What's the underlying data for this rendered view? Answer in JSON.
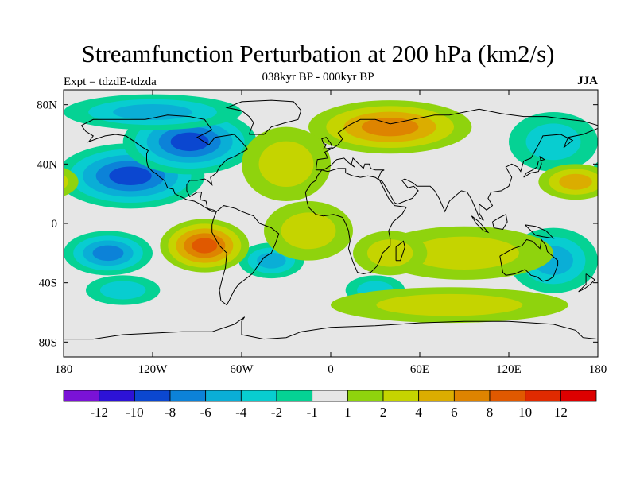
{
  "title": "Streamfunction Perturbation at 200 hPa (km2/s)",
  "subtitle": "038kyr BP - 000kyr BP",
  "experiment": "Expt = tdzdE-tdzda",
  "season": "JJA",
  "map": {
    "projection": "cylindrical-equidistant",
    "lon_range": [
      -180,
      180
    ],
    "lat_range": [
      -90,
      90
    ],
    "lat_ticks": [
      {
        "value": 80,
        "label": "80N"
      },
      {
        "value": 40,
        "label": "40N"
      },
      {
        "value": 0,
        "label": "0"
      },
      {
        "value": -40,
        "label": "40S"
      },
      {
        "value": -80,
        "label": "80S"
      }
    ],
    "lon_ticks": [
      {
        "value": -180,
        "label": "180"
      },
      {
        "value": -120,
        "label": "120W"
      },
      {
        "value": -60,
        "label": "60W"
      },
      {
        "value": 0,
        "label": "0"
      },
      {
        "value": 60,
        "label": "60E"
      },
      {
        "value": 120,
        "label": "120E"
      },
      {
        "value": 180,
        "label": "180"
      }
    ],
    "background_color": "#e6e6e6",
    "anomaly_regions": [
      {
        "name": "n-pacific-low",
        "lon": -135,
        "lat": 32,
        "rlon": 50,
        "rlat": 22,
        "value": -9
      },
      {
        "name": "n-america-low",
        "lon": -95,
        "lat": 55,
        "rlon": 45,
        "rlat": 22,
        "value": -8
      },
      {
        "name": "arctic-canada-low",
        "lon": -120,
        "lat": 75,
        "rlon": 60,
        "rlat": 12,
        "value": -5
      },
      {
        "name": "sw-pacific-low",
        "lon": -150,
        "lat": -20,
        "rlon": 30,
        "rlat": 15,
        "value": -6
      },
      {
        "name": "s-pacific-low",
        "lon": -140,
        "lat": -45,
        "rlon": 25,
        "rlat": 10,
        "value": -3
      },
      {
        "name": "s-atlantic-low",
        "lon": -40,
        "lat": -25,
        "rlon": 22,
        "rlat": 12,
        "value": -4
      },
      {
        "name": "s-indian-low",
        "lon": 30,
        "lat": -45,
        "rlon": 20,
        "rlat": 10,
        "value": -3
      },
      {
        "name": "w-pacific-low",
        "lon": 150,
        "lat": -25,
        "rlon": 30,
        "rlat": 22,
        "value": -5
      },
      {
        "name": "nw-pacific-low",
        "lon": 150,
        "lat": 55,
        "rlon": 30,
        "rlat": 20,
        "value": -3
      },
      {
        "name": "eurasia-high",
        "lon": 40,
        "lat": 65,
        "rlon": 55,
        "rlat": 18,
        "value": 7
      },
      {
        "name": "atlantic-high",
        "lon": -30,
        "lat": 40,
        "rlon": 30,
        "rlat": 25,
        "value": 2
      },
      {
        "name": "n-pacific-high",
        "lon": 165,
        "lat": 28,
        "rlon": 25,
        "rlat": 12,
        "value": 5
      },
      {
        "name": "e-pacific-high",
        "lon": -85,
        "lat": -15,
        "rlon": 30,
        "rlat": 18,
        "value": 8
      },
      {
        "name": "s-atlantic-high",
        "lon": -15,
        "lat": -5,
        "rlon": 30,
        "rlat": 20,
        "value": 2
      },
      {
        "name": "s-indian-high",
        "lon": 90,
        "lat": -20,
        "rlon": 60,
        "rlat": 18,
        "value": 2
      },
      {
        "name": "s-ocean-high",
        "lon": 80,
        "lat": -55,
        "rlon": 80,
        "rlat": 12,
        "value": 2
      },
      {
        "name": "s-africa-high",
        "lon": 40,
        "lat": -20,
        "rlon": 25,
        "rlat": 15,
        "value": 2
      }
    ]
  },
  "colorbar": {
    "colors": [
      "#7a12d6",
      "#2d12d6",
      "#0b47d0",
      "#0c82d8",
      "#0aaed6",
      "#08cdd0",
      "#05d294",
      "#e6e6e6",
      "#8fd30d",
      "#c5d400",
      "#dbad00",
      "#de8400",
      "#e05900",
      "#e02a00",
      "#dd0000"
    ],
    "labels": [
      "-12",
      "-10",
      "-8",
      "-6",
      "-4",
      "-2",
      "-1",
      "1",
      "2",
      "4",
      "6",
      "8",
      "10",
      "12"
    ]
  }
}
